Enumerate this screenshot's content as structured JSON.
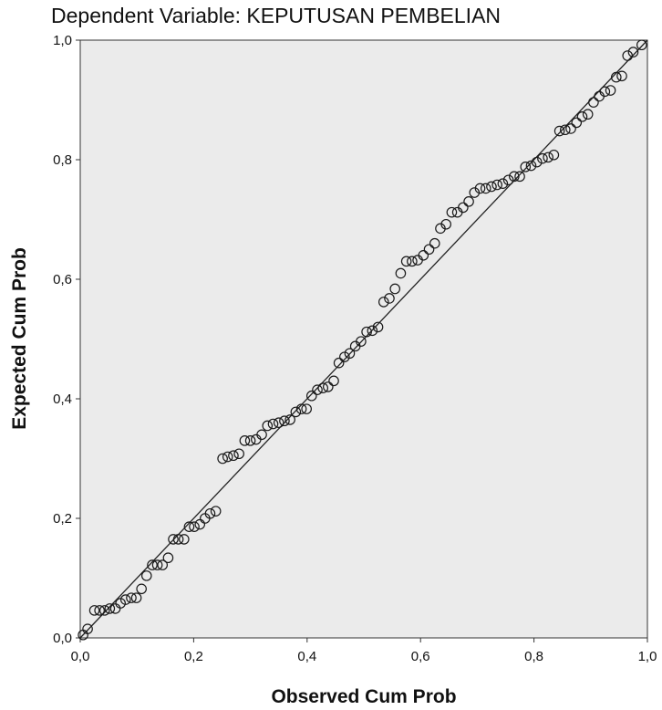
{
  "chart_data": {
    "type": "scatter",
    "title": "Dependent Variable: KEPUTUSAN PEMBELIAN",
    "xlabel": "Observed Cum Prob",
    "ylabel": "Expected Cum Prob",
    "xlim": [
      0,
      1
    ],
    "ylim": [
      0,
      1
    ],
    "x_ticks": [
      "0,0",
      "0,2",
      "0,4",
      "0,6",
      "0,8",
      "1,0"
    ],
    "y_ticks": [
      "0,0",
      "0,2",
      "0,4",
      "0,6",
      "0,8",
      "1,0"
    ],
    "grid": false,
    "reference_line": [
      [
        0,
        0
      ],
      [
        1,
        1
      ]
    ],
    "plot_background": "#ebebeb",
    "marker": "open-circle",
    "series": [
      {
        "points": [
          [
            0.005,
            0.005
          ],
          [
            0.013,
            0.015
          ],
          [
            0.025,
            0.046
          ],
          [
            0.034,
            0.046
          ],
          [
            0.043,
            0.046
          ],
          [
            0.052,
            0.049
          ],
          [
            0.062,
            0.049
          ],
          [
            0.071,
            0.058
          ],
          [
            0.08,
            0.064
          ],
          [
            0.09,
            0.067
          ],
          [
            0.099,
            0.067
          ],
          [
            0.108,
            0.082
          ],
          [
            0.117,
            0.104
          ],
          [
            0.127,
            0.122
          ],
          [
            0.136,
            0.122
          ],
          [
            0.145,
            0.122
          ],
          [
            0.155,
            0.134
          ],
          [
            0.164,
            0.165
          ],
          [
            0.173,
            0.165
          ],
          [
            0.183,
            0.165
          ],
          [
            0.192,
            0.186
          ],
          [
            0.201,
            0.186
          ],
          [
            0.211,
            0.19
          ],
          [
            0.22,
            0.2
          ],
          [
            0.229,
            0.208
          ],
          [
            0.239,
            0.212
          ],
          [
            0.251,
            0.3
          ],
          [
            0.26,
            0.303
          ],
          [
            0.27,
            0.305
          ],
          [
            0.28,
            0.308
          ],
          [
            0.29,
            0.33
          ],
          [
            0.3,
            0.33
          ],
          [
            0.31,
            0.332
          ],
          [
            0.32,
            0.34
          ],
          [
            0.33,
            0.355
          ],
          [
            0.34,
            0.358
          ],
          [
            0.35,
            0.36
          ],
          [
            0.36,
            0.363
          ],
          [
            0.37,
            0.365
          ],
          [
            0.38,
            0.378
          ],
          [
            0.39,
            0.383
          ],
          [
            0.399,
            0.383
          ],
          [
            0.408,
            0.405
          ],
          [
            0.418,
            0.415
          ],
          [
            0.428,
            0.418
          ],
          [
            0.437,
            0.42
          ],
          [
            0.447,
            0.43
          ],
          [
            0.456,
            0.46
          ],
          [
            0.466,
            0.47
          ],
          [
            0.475,
            0.476
          ],
          [
            0.485,
            0.488
          ],
          [
            0.495,
            0.496
          ],
          [
            0.505,
            0.512
          ],
          [
            0.515,
            0.514
          ],
          [
            0.525,
            0.52
          ],
          [
            0.535,
            0.562
          ],
          [
            0.545,
            0.568
          ],
          [
            0.555,
            0.584
          ],
          [
            0.565,
            0.61
          ],
          [
            0.575,
            0.63
          ],
          [
            0.585,
            0.63
          ],
          [
            0.595,
            0.632
          ],
          [
            0.605,
            0.64
          ],
          [
            0.615,
            0.65
          ],
          [
            0.625,
            0.66
          ],
          [
            0.635,
            0.685
          ],
          [
            0.645,
            0.692
          ],
          [
            0.655,
            0.712
          ],
          [
            0.665,
            0.712
          ],
          [
            0.675,
            0.72
          ],
          [
            0.685,
            0.73
          ],
          [
            0.695,
            0.745
          ],
          [
            0.705,
            0.752
          ],
          [
            0.715,
            0.752
          ],
          [
            0.725,
            0.755
          ],
          [
            0.735,
            0.758
          ],
          [
            0.745,
            0.76
          ],
          [
            0.755,
            0.766
          ],
          [
            0.765,
            0.772
          ],
          [
            0.775,
            0.772
          ],
          [
            0.785,
            0.788
          ],
          [
            0.795,
            0.79
          ],
          [
            0.805,
            0.796
          ],
          [
            0.815,
            0.802
          ],
          [
            0.825,
            0.804
          ],
          [
            0.835,
            0.808
          ],
          [
            0.845,
            0.848
          ],
          [
            0.855,
            0.85
          ],
          [
            0.865,
            0.852
          ],
          [
            0.875,
            0.862
          ],
          [
            0.885,
            0.872
          ],
          [
            0.895,
            0.876
          ],
          [
            0.905,
            0.896
          ],
          [
            0.915,
            0.906
          ],
          [
            0.925,
            0.914
          ],
          [
            0.935,
            0.916
          ],
          [
            0.945,
            0.938
          ],
          [
            0.955,
            0.94
          ],
          [
            0.965,
            0.974
          ],
          [
            0.975,
            0.98
          ],
          [
            0.99,
            0.992
          ]
        ]
      }
    ]
  }
}
